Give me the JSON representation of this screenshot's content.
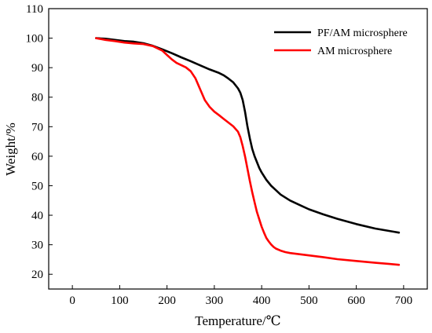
{
  "chart_data": {
    "type": "line",
    "title": "",
    "xlabel": "Temperature/℃",
    "ylabel": "Weight/%",
    "xlim": [
      -50,
      750
    ],
    "ylim": [
      15,
      110
    ],
    "xticks": [
      0,
      100,
      200,
      300,
      400,
      500,
      600,
      700
    ],
    "yticks": [
      20,
      30,
      40,
      50,
      60,
      70,
      80,
      90,
      100,
      110
    ],
    "legend_position": "top-right",
    "grid": false,
    "series": [
      {
        "name": "PF/AM microsphere",
        "color": "#000000",
        "x": [
          50,
          70,
          90,
          110,
          130,
          150,
          170,
          190,
          210,
          230,
          250,
          270,
          290,
          310,
          320,
          330,
          340,
          350,
          355,
          360,
          365,
          370,
          375,
          380,
          385,
          390,
          395,
          400,
          410,
          420,
          430,
          440,
          460,
          480,
          500,
          530,
          560,
          600,
          640,
          680,
          690
        ],
        "y": [
          100,
          99.8,
          99.4,
          99.0,
          98.8,
          98.3,
          97.4,
          96.2,
          94.9,
          93.5,
          92.2,
          90.8,
          89.4,
          88.2,
          87.4,
          86.3,
          85.0,
          83.0,
          81.5,
          79.0,
          75.0,
          70.0,
          66.0,
          62.5,
          60.0,
          58.0,
          56.0,
          54.5,
          52.0,
          50.0,
          48.5,
          47.0,
          45.0,
          43.5,
          42.0,
          40.3,
          38.8,
          37.0,
          35.5,
          34.4,
          34.1
        ]
      },
      {
        "name": "AM microsphere",
        "color": "#ff0000",
        "x": [
          50,
          70,
          90,
          110,
          130,
          150,
          170,
          190,
          200,
          210,
          220,
          240,
          250,
          260,
          270,
          280,
          290,
          300,
          310,
          320,
          330,
          340,
          350,
          355,
          360,
          365,
          370,
          375,
          380,
          385,
          390,
          395,
          400,
          405,
          410,
          415,
          420,
          425,
          430,
          440,
          450,
          460,
          480,
          500,
          530,
          560,
          600,
          640,
          670,
          690
        ],
        "y": [
          100,
          99.4,
          99.0,
          98.5,
          98.2,
          98.0,
          97.3,
          95.8,
          94.3,
          92.8,
          91.6,
          90.1,
          88.8,
          86.4,
          82.7,
          79.0,
          76.7,
          75.1,
          73.9,
          72.6,
          71.4,
          70.1,
          68.3,
          66.4,
          63.4,
          59.9,
          55.7,
          51.6,
          47.8,
          44.4,
          41.1,
          38.6,
          36.1,
          34.1,
          32.3,
          31.1,
          30.1,
          29.3,
          28.7,
          28.0,
          27.5,
          27.2,
          26.8,
          26.4,
          25.8,
          25.1,
          24.5,
          23.9,
          23.5,
          23.2
        ]
      }
    ]
  }
}
